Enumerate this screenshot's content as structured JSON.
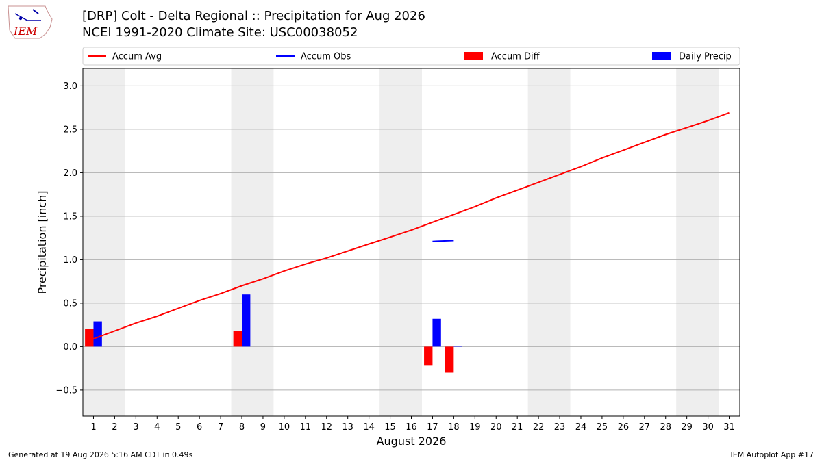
{
  "header": {
    "title_line1": "[DRP] Colt - Delta Regional :: Precipitation for Aug 2026",
    "title_line2": "NCEI 1991-2020 Climate Site: USC00038052",
    "logo_text": "IEM"
  },
  "footer": {
    "left": "Generated at 19 Aug 2026 5:16 AM CDT in 0.49s",
    "right": "IEM Autoplot App #17"
  },
  "chart_data": {
    "type": "bar",
    "xlabel": "August 2026",
    "ylabel": "Precipitation [inch]",
    "xlim": [
      0.5,
      31.5
    ],
    "ylim": [
      -0.8,
      3.2
    ],
    "yticks": [
      -0.5,
      0.0,
      0.5,
      1.0,
      1.5,
      2.0,
      2.5,
      3.0
    ],
    "ytick_labels": [
      "−0.5",
      "0.0",
      "0.5",
      "1.0",
      "1.5",
      "2.0",
      "2.5",
      "3.0"
    ],
    "x": [
      1,
      2,
      3,
      4,
      5,
      6,
      7,
      8,
      9,
      10,
      11,
      12,
      13,
      14,
      15,
      16,
      17,
      18,
      19,
      20,
      21,
      22,
      23,
      24,
      25,
      26,
      27,
      28,
      29,
      30,
      31
    ],
    "x_tick_labels": [
      "1",
      "2",
      "3",
      "4",
      "5",
      "6",
      "7",
      "8",
      "9",
      "10",
      "11",
      "12",
      "13",
      "14",
      "15",
      "16",
      "17",
      "18",
      "19",
      "20",
      "21",
      "22",
      "23",
      "24",
      "25",
      "26",
      "27",
      "28",
      "29",
      "30",
      "31"
    ],
    "weekend_shading": [
      [
        0.5,
        2.5
      ],
      [
        7.5,
        9.5
      ],
      [
        14.5,
        16.5
      ],
      [
        21.5,
        23.5
      ],
      [
        28.5,
        30.5
      ]
    ],
    "grid": "horizontal",
    "legend_placement": "top",
    "legend": [
      {
        "label": "Accum Avg",
        "kind": "line",
        "color": "#ff0000"
      },
      {
        "label": "Accum Obs",
        "kind": "line",
        "color": "#0000ff"
      },
      {
        "label": "Accum Diff",
        "kind": "bar",
        "color": "#ff0000"
      },
      {
        "label": "Daily Precip",
        "kind": "bar",
        "color": "#0000ff"
      }
    ],
    "series": [
      {
        "name": "Accum Avg",
        "kind": "line",
        "color": "#ff0000",
        "values": [
          0.09,
          0.18,
          0.27,
          0.35,
          0.44,
          0.53,
          0.61,
          0.7,
          0.78,
          0.87,
          0.95,
          1.02,
          1.1,
          1.18,
          1.26,
          1.34,
          1.43,
          1.52,
          1.61,
          1.71,
          1.8,
          1.89,
          1.98,
          2.07,
          2.17,
          2.26,
          2.35,
          2.44,
          2.52,
          2.6,
          2.69
        ]
      },
      {
        "name": "Accum Obs",
        "kind": "line",
        "color": "#0000ff",
        "points": [
          [
            17,
            1.21
          ],
          [
            18,
            1.22
          ]
        ]
      },
      {
        "name": "Accum Diff",
        "kind": "bar",
        "color": "#ff0000",
        "points": [
          [
            1,
            0.2
          ],
          [
            8,
            0.18
          ],
          [
            17,
            -0.22
          ],
          [
            18,
            -0.3
          ]
        ]
      },
      {
        "name": "Daily Precip",
        "kind": "bar",
        "color": "#0000ff",
        "points": [
          [
            1,
            0.29
          ],
          [
            8,
            0.6
          ],
          [
            17,
            0.32
          ],
          [
            18,
            0.01
          ]
        ]
      }
    ]
  }
}
